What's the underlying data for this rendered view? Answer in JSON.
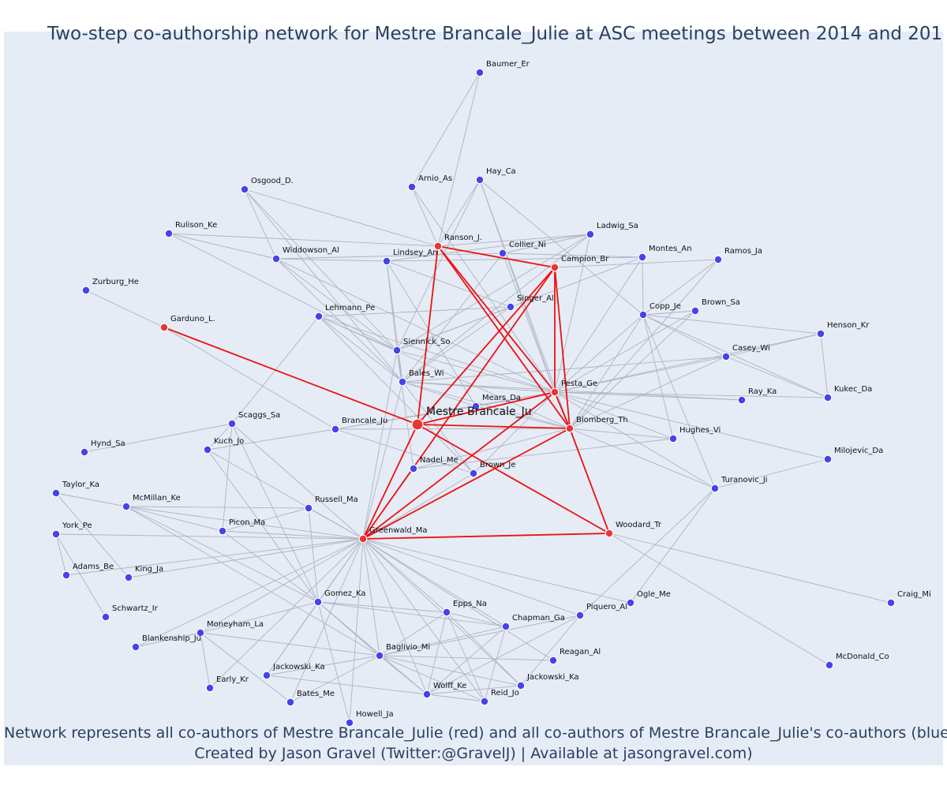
{
  "title": "Two-step co-authorship network for Mestre Brancale_Julie at ASC meetings between 2014 and 201",
  "footer": {
    "line1": "Network represents all co-authors of Mestre Brancale_Julie (red) and all co-authors of Mestre Brancale_Julie's co-authors (blue)",
    "line2": "Created by Jason Gravel (Twitter:@GravelJ) | Available at jasongravel.com)"
  },
  "colors": {
    "red": "#ee3333",
    "blue": "#4444ee",
    "edge_gray": "#aeb4c2",
    "edge_red": "#ee1111",
    "plot_bg": "#e5ecf6",
    "title": "#2a3f5f"
  },
  "network": {
    "center": "Mestre Brancale_Ju",
    "nodes": [
      {
        "id": "Mestre Brancale_Ju",
        "label": "Mestre Brancale_Ju",
        "group": "center"
      },
      {
        "id": "Ranson_J.",
        "label": "Ranson_J.",
        "group": "red"
      },
      {
        "id": "Campion_Br",
        "label": "Campion_Br",
        "group": "red"
      },
      {
        "id": "Garduno_L.",
        "label": "Garduno_L.",
        "group": "red"
      },
      {
        "id": "Pesta_Ge",
        "label": "Pesta_Ge",
        "group": "red"
      },
      {
        "id": "Blomberg_Th",
        "label": "Blomberg_Th",
        "group": "red"
      },
      {
        "id": "Greenwald_Ma",
        "label": "Greenwald_Ma",
        "group": "red"
      },
      {
        "id": "Woodard_Tr",
        "label": "Woodard_Tr",
        "group": "red"
      },
      {
        "id": "Baumer_Er",
        "label": "Baumer_Er",
        "group": "blue"
      },
      {
        "id": "Arnio_As",
        "label": "Arnio_As",
        "group": "blue"
      },
      {
        "id": "Hay_Ca",
        "label": "Hay_Ca",
        "group": "blue"
      },
      {
        "id": "Osgood_D.",
        "label": "Osgood_D.",
        "group": "blue"
      },
      {
        "id": "Rulison_Ke",
        "label": "Rulison_Ke",
        "group": "blue"
      },
      {
        "id": "Ladwig_Sa",
        "label": "Ladwig_Sa",
        "group": "blue"
      },
      {
        "id": "Collier_Ni",
        "label": "Collier_Ni",
        "group": "blue"
      },
      {
        "id": "Montes_An",
        "label": "Montes_An",
        "group": "blue"
      },
      {
        "id": "Ramos_Ja",
        "label": "Ramos_Ja",
        "group": "blue"
      },
      {
        "id": "Widdowson_Al",
        "label": "Widdowson_Al",
        "group": "blue"
      },
      {
        "id": "Lindsey_An",
        "label": "Lindsey_An",
        "group": "blue"
      },
      {
        "id": "Zurburg_He",
        "label": "Zurburg_He",
        "group": "blue"
      },
      {
        "id": "Singer_Al",
        "label": "Singer_Al",
        "group": "blue"
      },
      {
        "id": "Lehmann_Pe",
        "label": "Lehmann_Pe",
        "group": "blue"
      },
      {
        "id": "Copp_Je",
        "label": "Copp_Je",
        "group": "blue"
      },
      {
        "id": "Brown_Sa",
        "label": "Brown_Sa",
        "group": "blue"
      },
      {
        "id": "Henson_Kr",
        "label": "Henson_Kr",
        "group": "blue"
      },
      {
        "id": "Siennick_So",
        "label": "Siennick_So",
        "group": "blue"
      },
      {
        "id": "Casey_Wi",
        "label": "Casey_Wi",
        "group": "blue"
      },
      {
        "id": "Bales_Wi",
        "label": "Bales_Wi",
        "group": "blue"
      },
      {
        "id": "Kukec_Da",
        "label": "Kukec_Da",
        "group": "blue"
      },
      {
        "id": "Mears_Da",
        "label": "Mears_Da",
        "group": "blue"
      },
      {
        "id": "Ray_Ka",
        "label": "Ray_Ka",
        "group": "blue"
      },
      {
        "id": "Scaggs_Sa",
        "label": "Scaggs_Sa",
        "group": "blue"
      },
      {
        "id": "Brancale_Ju",
        "label": "Brancale_Ju",
        "group": "blue"
      },
      {
        "id": "Hughes_Vi",
        "label": "Hughes_Vi",
        "group": "blue"
      },
      {
        "id": "Hynd_Sa",
        "label": "Hynd_Sa",
        "group": "blue"
      },
      {
        "id": "Kuch_Jo",
        "label": "Kuch_Jo",
        "group": "blue"
      },
      {
        "id": "Milojevic_Da",
        "label": "Milojevic_Da",
        "group": "blue"
      },
      {
        "id": "Nadel_Me",
        "label": "Nadel_Me",
        "group": "blue"
      },
      {
        "id": "Brown_Je",
        "label": "Brown_Je",
        "group": "blue"
      },
      {
        "id": "Taylor_Ka",
        "label": "Taylor_Ka",
        "group": "blue"
      },
      {
        "id": "Turanovic_Ji",
        "label": "Turanovic_Ji",
        "group": "blue"
      },
      {
        "id": "McMillan_Ke",
        "label": "McMillan_Ke",
        "group": "blue"
      },
      {
        "id": "Russell_Ma",
        "label": "Russell_Ma",
        "group": "blue"
      },
      {
        "id": "Picon_Ma",
        "label": "Picon_Ma",
        "group": "blue"
      },
      {
        "id": "York_Pe",
        "label": "York_Pe",
        "group": "blue"
      },
      {
        "id": "Adams_Be",
        "label": "Adams_Be",
        "group": "blue"
      },
      {
        "id": "King_Ja",
        "label": "King_Ja",
        "group": "blue"
      },
      {
        "id": "Gomez_Ka",
        "label": "Gomez_Ka",
        "group": "blue"
      },
      {
        "id": "Ogle_Me",
        "label": "Ogle_Me",
        "group": "blue"
      },
      {
        "id": "Craig_Mi",
        "label": "Craig_Mi",
        "group": "blue"
      },
      {
        "id": "Epps_Na",
        "label": "Epps_Na",
        "group": "blue"
      },
      {
        "id": "Piquero_Al",
        "label": "Piquero_Al",
        "group": "blue"
      },
      {
        "id": "Schwartz_Ir",
        "label": "Schwartz_Ir",
        "group": "blue"
      },
      {
        "id": "Moneyham_La",
        "label": "Moneyham_La",
        "group": "blue"
      },
      {
        "id": "Chapman_Ga",
        "label": "Chapman_Ga",
        "group": "blue"
      },
      {
        "id": "Blankenship_Ju",
        "label": "Blankenship_Ju",
        "group": "blue"
      },
      {
        "id": "Baglivio_Mi",
        "label": "Baglivio_Mi",
        "group": "blue"
      },
      {
        "id": "Reagan_Al",
        "label": "Reagan_Al",
        "group": "blue"
      },
      {
        "id": "McDonald_Co",
        "label": "McDonald_Co",
        "group": "blue"
      },
      {
        "id": "Jackowski_Ka",
        "label": "Jackowski_Ka",
        "group": "blue"
      },
      {
        "id": "Early_Kr",
        "label": "Early_Kr",
        "group": "blue"
      },
      {
        "id": "Jackowski_Ka ",
        "label": "Jackowski_Ka",
        "group": "blue"
      },
      {
        "id": "Bates_Me",
        "label": "Bates_Me",
        "group": "blue"
      },
      {
        "id": "Wolff_Ke",
        "label": "Wolff_Ke",
        "group": "blue"
      },
      {
        "id": "Reid_Jo",
        "label": "Reid_Jo",
        "group": "blue"
      },
      {
        "id": "Howell_Ja",
        "label": "Howell_Ja",
        "group": "blue"
      }
    ],
    "red_edges": [
      [
        "Mestre Brancale_Ju",
        "Ranson_J."
      ],
      [
        "Mestre Brancale_Ju",
        "Campion_Br"
      ],
      [
        "Mestre Brancale_Ju",
        "Garduno_L."
      ],
      [
        "Mestre Brancale_Ju",
        "Pesta_Ge"
      ],
      [
        "Mestre Brancale_Ju",
        "Blomberg_Th"
      ],
      [
        "Mestre Brancale_Ju",
        "Greenwald_Ma"
      ],
      [
        "Mestre Brancale_Ju",
        "Woodard_Tr"
      ],
      [
        "Ranson_J.",
        "Campion_Br"
      ],
      [
        "Ranson_J.",
        "Pesta_Ge"
      ],
      [
        "Ranson_J.",
        "Blomberg_Th"
      ],
      [
        "Campion_Br",
        "Pesta_Ge"
      ],
      [
        "Campion_Br",
        "Blomberg_Th"
      ],
      [
        "Campion_Br",
        "Greenwald_Ma"
      ],
      [
        "Pesta_Ge",
        "Blomberg_Th"
      ],
      [
        "Pesta_Ge",
        "Greenwald_Ma"
      ],
      [
        "Blomberg_Th",
        "Greenwald_Ma"
      ],
      [
        "Blomberg_Th",
        "Woodard_Tr"
      ],
      [
        "Greenwald_Ma",
        "Woodard_Tr"
      ]
    ],
    "gray_edges": [
      [
        "Baumer_Er",
        "Ranson_J."
      ],
      [
        "Baumer_Er",
        "Arnio_As"
      ],
      [
        "Arnio_As",
        "Ranson_J."
      ],
      [
        "Arnio_As",
        "Pesta_Ge"
      ],
      [
        "Hay_Ca",
        "Ranson_J."
      ],
      [
        "Hay_Ca",
        "Siennick_So"
      ],
      [
        "Hay_Ca",
        "Copp_Je"
      ],
      [
        "Hay_Ca",
        "Pesta_Ge"
      ],
      [
        "Hay_Ca",
        "Blomberg_Th"
      ],
      [
        "Osgood_D.",
        "Widdowson_Al"
      ],
      [
        "Osgood_D.",
        "Ranson_J."
      ],
      [
        "Osgood_D.",
        "Siennick_So"
      ],
      [
        "Osgood_D.",
        "Bales_Wi"
      ],
      [
        "Rulison_Ke",
        "Widdowson_Al"
      ],
      [
        "Rulison_Ke",
        "Ranson_J."
      ],
      [
        "Rulison_Ke",
        "Siennick_So"
      ],
      [
        "Ladwig_Sa",
        "Ranson_J."
      ],
      [
        "Ladwig_Sa",
        "Lindsey_An"
      ],
      [
        "Ladwig_Sa",
        "Siennick_So"
      ],
      [
        "Ladwig_Sa",
        "Bales_Wi"
      ],
      [
        "Ladwig_Sa",
        "Pesta_Ge"
      ],
      [
        "Collier_Ni",
        "Widdowson_Al"
      ],
      [
        "Collier_Ni",
        "Ladwig_Sa"
      ],
      [
        "Collier_Ni",
        "Montes_An"
      ],
      [
        "Collier_Ni",
        "Pesta_Ge"
      ],
      [
        "Collier_Ni",
        "Bales_Wi"
      ],
      [
        "Montes_An",
        "Lindsey_An"
      ],
      [
        "Montes_An",
        "Copp_Je"
      ],
      [
        "Montes_An",
        "Pesta_Ge"
      ],
      [
        "Montes_An",
        "Siennick_So"
      ],
      [
        "Ramos_Ja",
        "Campion_Br"
      ],
      [
        "Ramos_Ja",
        "Copp_Je"
      ],
      [
        "Ramos_Ja",
        "Blomberg_Th"
      ],
      [
        "Widdowson_Al",
        "Lindsey_An"
      ],
      [
        "Widdowson_Al",
        "Bales_Wi"
      ],
      [
        "Widdowson_Al",
        "Siennick_So"
      ],
      [
        "Widdowson_Al",
        "Pesta_Ge"
      ],
      [
        "Lindsey_An",
        "Siennick_So"
      ],
      [
        "Lindsey_An",
        "Bales_Wi"
      ],
      [
        "Lindsey_An",
        "Singer_Al"
      ],
      [
        "Lindsey_An",
        "Mears_Da"
      ],
      [
        "Zurburg_He",
        "Garduno_L."
      ],
      [
        "Singer_Al",
        "Bales_Wi"
      ],
      [
        "Singer_Al",
        "Siennick_So"
      ],
      [
        "Singer_Al",
        "Lehmann_Pe"
      ],
      [
        "Lehmann_Pe",
        "Bales_Wi"
      ],
      [
        "Lehmann_Pe",
        "Siennick_So"
      ],
      [
        "Lehmann_Pe",
        "Pesta_Ge"
      ],
      [
        "Lehmann_Pe",
        "Blomberg_Th"
      ],
      [
        "Lehmann_Pe",
        "Scaggs_Sa"
      ],
      [
        "Copp_Je",
        "Brown_Sa"
      ],
      [
        "Copp_Je",
        "Pesta_Ge"
      ],
      [
        "Copp_Je",
        "Blomberg_Th"
      ],
      [
        "Copp_Je",
        "Casey_Wi"
      ],
      [
        "Copp_Je",
        "Henson_Kr"
      ],
      [
        "Copp_Je",
        "Kukec_Da"
      ],
      [
        "Copp_Je",
        "Turanovic_Ji"
      ],
      [
        "Brown_Sa",
        "Pesta_Ge"
      ],
      [
        "Brown_Sa",
        "Blomberg_Th"
      ],
      [
        "Henson_Kr",
        "Casey_Wi"
      ],
      [
        "Henson_Kr",
        "Kukec_Da"
      ],
      [
        "Henson_Kr",
        "Pesta_Ge"
      ],
      [
        "Casey_Wi",
        "Pesta_Ge"
      ],
      [
        "Casey_Wi",
        "Blomberg_Th"
      ],
      [
        "Casey_Wi",
        "Bales_Wi"
      ],
      [
        "Casey_Wi",
        "Kukec_Da"
      ],
      [
        "Siennick_So",
        "Bales_Wi"
      ],
      [
        "Siennick_So",
        "Pesta_Ge"
      ],
      [
        "Siennick_So",
        "Greenwald_Ma"
      ],
      [
        "Siennick_So",
        "Nadel_Me"
      ],
      [
        "Bales_Wi",
        "Pesta_Ge"
      ],
      [
        "Bales_Wi",
        "Blomberg_Th"
      ],
      [
        "Bales_Wi",
        "Mears_Da"
      ],
      [
        "Bales_Wi",
        "Greenwald_Ma"
      ],
      [
        "Bales_Wi",
        "Brown_Je"
      ],
      [
        "Bales_Wi",
        "Ray_Ka"
      ],
      [
        "Kukec_Da",
        "Pesta_Ge"
      ],
      [
        "Mears_Da",
        "Pesta_Ge"
      ],
      [
        "Mears_Da",
        "Blomberg_Th"
      ],
      [
        "Mears_Da",
        "Brancale_Ju"
      ],
      [
        "Ray_Ka",
        "Pesta_Ge"
      ],
      [
        "Scaggs_Sa",
        "Kuch_Jo"
      ],
      [
        "Scaggs_Sa",
        "Greenwald_Ma"
      ],
      [
        "Scaggs_Sa",
        "Hynd_Sa"
      ],
      [
        "Scaggs_Sa",
        "Gomez_Ka"
      ],
      [
        "Scaggs_Sa",
        "Picon_Ma"
      ],
      [
        "Brancale_Ju",
        "Pesta_Ge"
      ],
      [
        "Brancale_Ju",
        "Blomberg_Th"
      ],
      [
        "Brancale_Ju",
        "Brown_Je"
      ],
      [
        "Brancale_Ju",
        "Garduno_L."
      ],
      [
        "Hughes_Vi",
        "Blomberg_Th"
      ],
      [
        "Hughes_Vi",
        "Pesta_Ge"
      ],
      [
        "Hughes_Vi",
        "Nadel_Me"
      ],
      [
        "Hughes_Vi",
        "Copp_Je"
      ],
      [
        "Kuch_Jo",
        "Brancale_Ju"
      ],
      [
        "Kuch_Jo",
        "Greenwald_Ma"
      ],
      [
        "Kuch_Jo",
        "Gomez_Ka"
      ],
      [
        "Milojevic_Da",
        "Turanovic_Ji"
      ],
      [
        "Milojevic_Da",
        "Pesta_Ge"
      ],
      [
        "Nadel_Me",
        "Greenwald_Ma"
      ],
      [
        "Nadel_Me",
        "Blomberg_Th"
      ],
      [
        "Brown_Je",
        "Greenwald_Ma"
      ],
      [
        "Brown_Je",
        "Pesta_Ge"
      ],
      [
        "Brown_Je",
        "Lehmann_Pe"
      ],
      [
        "Taylor_Ka",
        "McMillan_Ke"
      ],
      [
        "Taylor_Ka",
        "King_Ja"
      ],
      [
        "Turanovic_Ji",
        "Pesta_Ge"
      ],
      [
        "Turanovic_Ji",
        "Blomberg_Th"
      ],
      [
        "Turanovic_Ji",
        "Piquero_Al"
      ],
      [
        "Turanovic_Ji",
        "Ogle_Me"
      ],
      [
        "McMillan_Ke",
        "Greenwald_Ma"
      ],
      [
        "McMillan_Ke",
        "Picon_Ma"
      ],
      [
        "McMillan_Ke",
        "Gomez_Ka"
      ],
      [
        "McMillan_Ke",
        "Baglivio_Mi"
      ],
      [
        "McMillan_Ke",
        "Russell_Ma"
      ],
      [
        "Russell_Ma",
        "Greenwald_Ma"
      ],
      [
        "Russell_Ma",
        "Gomez_Ka"
      ],
      [
        "Russell_Ma",
        "Picon_Ma"
      ],
      [
        "Picon_Ma",
        "Greenwald_Ma"
      ],
      [
        "Picon_Ma",
        "Gomez_Ka"
      ],
      [
        "York_Pe",
        "Greenwald_Ma"
      ],
      [
        "York_Pe",
        "Adams_Be"
      ],
      [
        "York_Pe",
        "Schwartz_Ir"
      ],
      [
        "Adams_Be",
        "Greenwald_Ma"
      ],
      [
        "King_Ja",
        "Greenwald_Ma"
      ],
      [
        "Gomez_Ka",
        "Greenwald_Ma"
      ],
      [
        "Gomez_Ka",
        "Epps_Na"
      ],
      [
        "Gomez_Ka",
        "Baglivio_Mi"
      ],
      [
        "Gomez_Ka",
        "Chapman_Ga"
      ],
      [
        "Gomez_Ka",
        "Wolff_Ke"
      ],
      [
        "Gomez_Ka",
        "Jackowski_Ka"
      ],
      [
        "Greenwald_Ma",
        "Epps_Na"
      ],
      [
        "Greenwald_Ma",
        "Piquero_Al"
      ],
      [
        "Greenwald_Ma",
        "Chapman_Ga"
      ],
      [
        "Greenwald_Ma",
        "Baglivio_Mi"
      ],
      [
        "Greenwald_Ma",
        "Reagan_Al"
      ],
      [
        "Greenwald_Ma",
        "Ogle_Me"
      ],
      [
        "Greenwald_Ma",
        "Moneyham_La"
      ],
      [
        "Greenwald_Ma",
        "Blankenship_Ju"
      ],
      [
        "Greenwald_Ma",
        "Jackowski_Ka"
      ],
      [
        "Greenwald_Ma",
        "Early_Kr"
      ],
      [
        "Greenwald_Ma",
        "Bates_Me"
      ],
      [
        "Greenwald_Ma",
        "Wolff_Ke"
      ],
      [
        "Greenwald_Ma",
        "Reid_Jo"
      ],
      [
        "Greenwald_Ma",
        "Howell_Ja"
      ],
      [
        "Greenwald_Ma",
        "Jackowski_Ka "
      ],
      [
        "Woodard_Tr",
        "Craig_Mi"
      ],
      [
        "Woodard_Tr",
        "McDonald_Co"
      ],
      [
        "Epps_Na",
        "Chapman_Ga"
      ],
      [
        "Epps_Na",
        "Baglivio_Mi"
      ],
      [
        "Epps_Na",
        "Reid_Jo"
      ],
      [
        "Epps_Na",
        "Wolff_Ke"
      ],
      [
        "Epps_Na",
        "Jackowski_Ka "
      ],
      [
        "Piquero_Al",
        "Baglivio_Mi"
      ],
      [
        "Piquero_Al",
        "Wolff_Ke"
      ],
      [
        "Piquero_Al",
        "Jackowski_Ka "
      ],
      [
        "Chapman_Ga",
        "Baglivio_Mi"
      ],
      [
        "Chapman_Ga",
        "Wolff_Ke"
      ],
      [
        "Chapman_Ga",
        "Reid_Jo"
      ],
      [
        "Moneyham_La",
        "Baglivio_Mi"
      ],
      [
        "Moneyham_La",
        "Bates_Me"
      ],
      [
        "Moneyham_La",
        "Early_Kr"
      ],
      [
        "Moneyham_La",
        "Blankenship_Ju"
      ],
      [
        "Moneyham_La",
        "Gomez_Ka"
      ],
      [
        "Baglivio_Mi",
        "Jackowski_Ka"
      ],
      [
        "Baglivio_Mi",
        "Wolff_Ke"
      ],
      [
        "Baglivio_Mi",
        "Reid_Jo"
      ],
      [
        "Baglivio_Mi",
        "Reagan_Al"
      ],
      [
        "Baglivio_Mi",
        "Jackowski_Ka "
      ],
      [
        "Jackowski_Ka",
        "Wolff_Ke"
      ],
      [
        "Bates_Me",
        "Baglivio_Mi"
      ],
      [
        "Wolff_Ke",
        "Reid_Jo"
      ],
      [
        "Wolff_Ke",
        "Jackowski_Ka "
      ],
      [
        "Howell_Ja",
        "Gomez_Ka"
      ]
    ]
  }
}
